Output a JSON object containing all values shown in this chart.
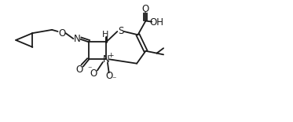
{
  "bg_color": "#ffffff",
  "line_color": "#1a1a1a",
  "line_width": 1.3,
  "font_size": 8.5,
  "figsize": [
    3.73,
    1.55
  ],
  "dpi": 100,
  "xlim": [
    0,
    10.5
  ],
  "ylim": [
    0,
    4.2
  ]
}
